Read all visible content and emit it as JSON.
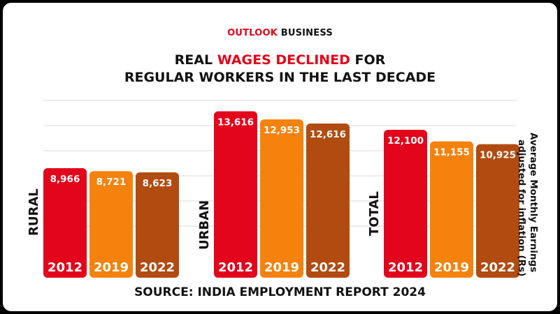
{
  "brand": {
    "part1": "OUTLOOK",
    "part2": " BUSINESS"
  },
  "title": {
    "line1_pre": "REAL ",
    "line1_hl": "WAGES DECLINED",
    "line1_post": " FOR",
    "line2": "REGULAR WORKERS IN THE LAST DECADE"
  },
  "source": "SOURCE: INDIA EMPLOYMENT REPORT 2024",
  "colors": {
    "c2012": "#e3051b",
    "c2019": "#f5820d",
    "c2022": "#b14b10",
    "accent": "#e3051b"
  },
  "chart_data": {
    "type": "bar",
    "title": "REAL WAGES DECLINED FOR REGULAR WORKERS IN THE LAST DECADE",
    "ylabel": "Average Monthly Earnings adjusted for inflation (Rs)",
    "ylabel_line1": "Average Monthly Earnings",
    "ylabel_line2": "adjusted for inflation (Rs)",
    "ylim": [
      0,
      14500
    ],
    "grid": true,
    "groups": [
      {
        "name": "RURAL",
        "bars": [
          {
            "year": "2012",
            "value": 8966,
            "label": "8,966"
          },
          {
            "year": "2019",
            "value": 8721,
            "label": "8,721"
          },
          {
            "year": "2022",
            "value": 8623,
            "label": "8,623"
          }
        ]
      },
      {
        "name": "URBAN",
        "bars": [
          {
            "year": "2012",
            "value": 13616,
            "label": "13,616"
          },
          {
            "year": "2019",
            "value": 12953,
            "label": "12,953"
          },
          {
            "year": "2022",
            "value": 12616,
            "label": "12,616"
          }
        ]
      },
      {
        "name": "TOTAL",
        "bars": [
          {
            "year": "2012",
            "value": 12100,
            "label": "12,100"
          },
          {
            "year": "2019",
            "value": 11155,
            "label": "11,155"
          },
          {
            "year": "2022",
            "value": 10925,
            "label": "10,925"
          }
        ]
      }
    ]
  }
}
